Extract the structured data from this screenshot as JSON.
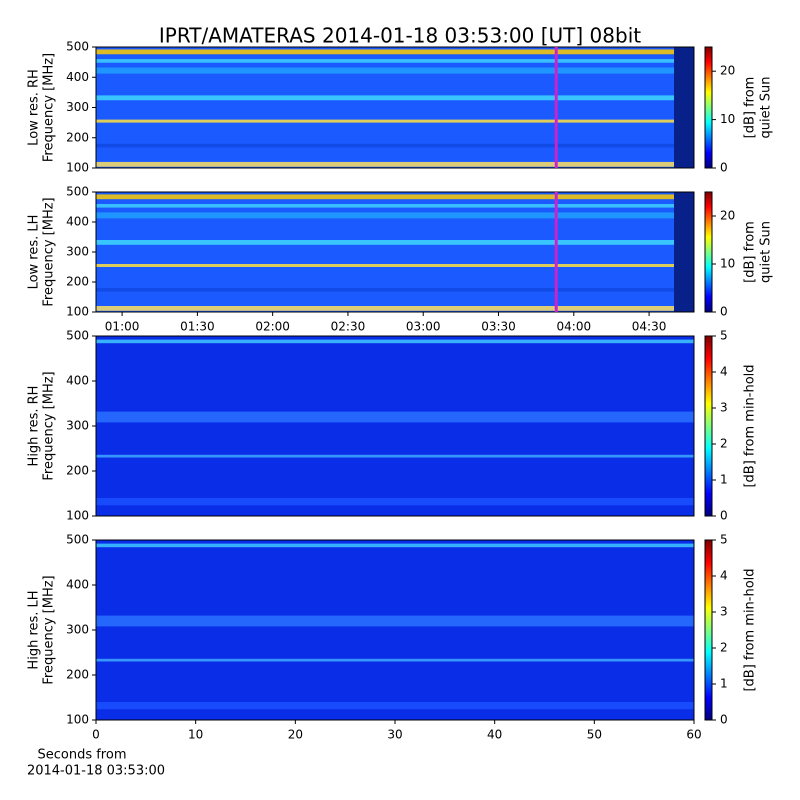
{
  "title": "IPRT/AMATERAS 2014-01-18 03:53:00 [UT]   08bit",
  "xlabel": [
    "Seconds from",
    "2014-01-18 03:53:00"
  ],
  "chart_data": [
    {
      "type": "heatmap",
      "ylabel": [
        "Low res. RH",
        "Frequency [MHz]"
      ],
      "xlim": [
        49.6,
        287.9
      ],
      "ylim": [
        100,
        500
      ],
      "yticks": [
        100,
        200,
        300,
        400,
        500
      ],
      "cursor_x": 233,
      "cursor_color": "#cc22cc",
      "colorbar": {
        "label": [
          "[dB] from",
          "quiet Sun"
        ],
        "lim": [
          0,
          25
        ],
        "ticks": [
          0,
          10,
          20
        ]
      },
      "colormap": [
        "#00007f",
        "#0000ff",
        "#007fff",
        "#00ffff",
        "#7fff7f",
        "#ffff00",
        "#ff7f00",
        "#ff0000",
        "#7f0000"
      ]
    },
    {
      "type": "heatmap",
      "ylabel": [
        "Low res. LH",
        "Frequency [MHz]"
      ],
      "xlim": [
        49.6,
        287.9
      ],
      "ylim": [
        100,
        500
      ],
      "yticks": [
        100,
        200,
        300,
        400,
        500
      ],
      "xticks": [
        {
          "value": 60,
          "label": "01:00"
        },
        {
          "value": 90,
          "label": "01:30"
        },
        {
          "value": 120,
          "label": "02:00"
        },
        {
          "value": 150,
          "label": "02:30"
        },
        {
          "value": 180,
          "label": "03:00"
        },
        {
          "value": 210,
          "label": "03:30"
        },
        {
          "value": 240,
          "label": "04:00"
        },
        {
          "value": 270,
          "label": "04:30"
        }
      ],
      "cursor_x": 233,
      "cursor_color": "#cc22cc",
      "colorbar": {
        "label": [
          "[dB] from",
          "quiet Sun"
        ],
        "lim": [
          0,
          25
        ],
        "ticks": [
          0,
          10,
          20
        ]
      },
      "colormap": [
        "#00007f",
        "#0000ff",
        "#007fff",
        "#00ffff",
        "#7fff7f",
        "#ffff00",
        "#ff7f00",
        "#ff0000",
        "#7f0000"
      ]
    },
    {
      "type": "heatmap",
      "ylabel": [
        "High res. RH",
        "Frequency [MHz]"
      ],
      "xlim": [
        0,
        60
      ],
      "ylim": [
        100,
        500
      ],
      "yticks": [
        100,
        200,
        300,
        400,
        500
      ],
      "colorbar": {
        "label": [
          "[dB] from min-hold"
        ],
        "lim": [
          0,
          5
        ],
        "ticks": [
          0,
          1,
          2,
          3,
          4,
          5
        ]
      },
      "colormap": [
        "#00007f",
        "#0000ff",
        "#007fff",
        "#00ffff",
        "#7fff7f",
        "#ffff00",
        "#ff7f00",
        "#ff0000",
        "#7f0000"
      ]
    },
    {
      "type": "heatmap",
      "ylabel": [
        "High res. LH",
        "Frequency [MHz]"
      ],
      "xlim": [
        0,
        60
      ],
      "ylim": [
        100,
        500
      ],
      "yticks": [
        100,
        200,
        300,
        400,
        500
      ],
      "xticks": [
        0,
        10,
        20,
        30,
        40,
        50,
        60
      ],
      "colorbar": {
        "label": [
          "[dB] from min-hold"
        ],
        "lim": [
          0,
          5
        ],
        "ticks": [
          0,
          1,
          2,
          3,
          4,
          5
        ]
      },
      "colormap": [
        "#00007f",
        "#0000ff",
        "#007fff",
        "#00ffff",
        "#7fff7f",
        "#ffff00",
        "#ff7f00",
        "#ff0000",
        "#7f0000"
      ]
    }
  ]
}
